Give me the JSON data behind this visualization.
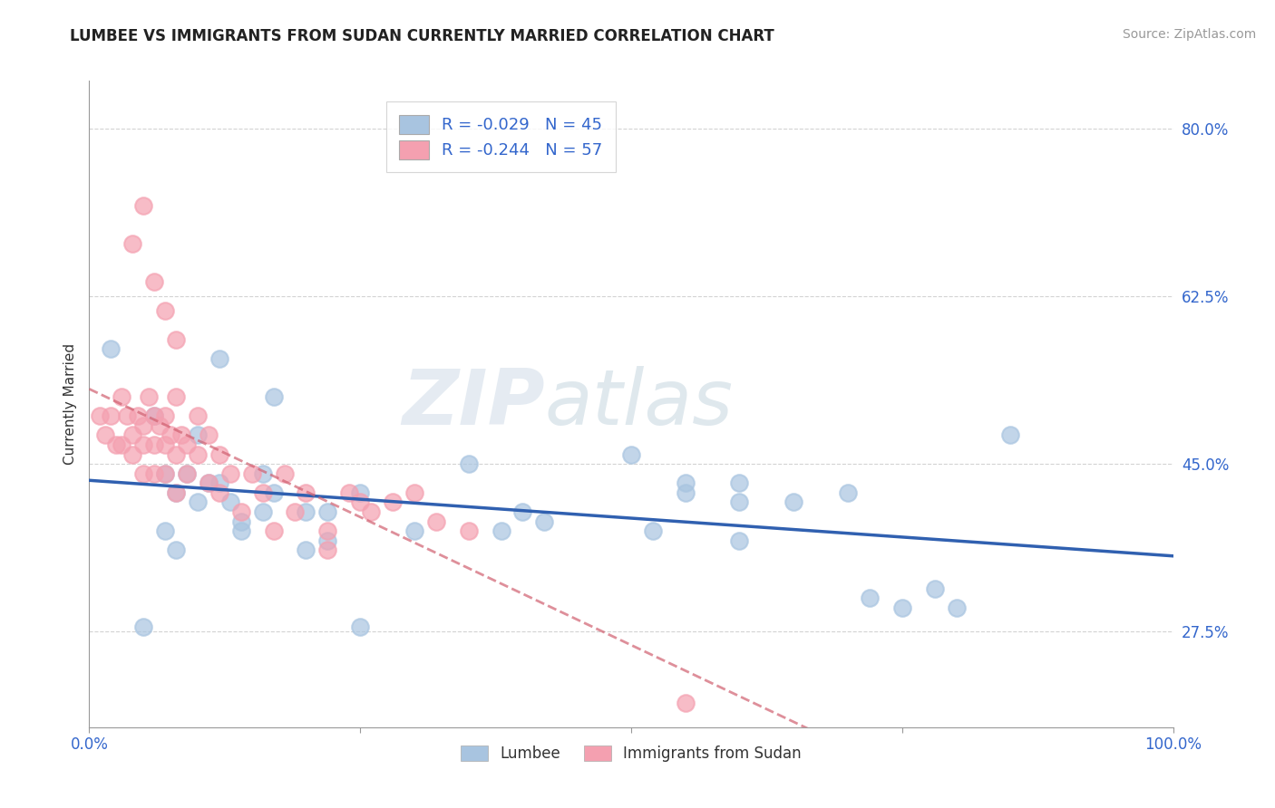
{
  "title": "LUMBEE VS IMMIGRANTS FROM SUDAN CURRENTLY MARRIED CORRELATION CHART",
  "source_text": "Source: ZipAtlas.com",
  "ylabel": "Currently Married",
  "x_min": 0.0,
  "x_max": 1.0,
  "y_min": 0.175,
  "y_max": 0.85,
  "y_ticks": [
    0.275,
    0.45,
    0.625,
    0.8
  ],
  "y_tick_labels": [
    "27.5%",
    "45.0%",
    "62.5%",
    "80.0%"
  ],
  "legend_lumbee_r": "R = -0.029",
  "legend_lumbee_n": "N = 45",
  "legend_sudan_r": "R = -0.244",
  "legend_sudan_n": "N = 57",
  "lumbee_color": "#a8c4e0",
  "sudan_color": "#f4a0b0",
  "lumbee_line_color": "#3060b0",
  "sudan_line_color": "#d06070",
  "watermark_zip": "ZIP",
  "watermark_atlas": "atlas",
  "background_color": "#ffffff",
  "grid_color": "#c8c8c8",
  "lumbee_x": [
    0.02,
    0.09,
    0.06,
    0.07,
    0.08,
    0.1,
    0.11,
    0.12,
    0.13,
    0.14,
    0.05,
    0.16,
    0.17,
    0.08,
    0.2,
    0.07,
    0.22,
    0.12,
    0.25,
    0.1,
    0.3,
    0.14,
    0.35,
    0.16,
    0.17,
    0.2,
    0.22,
    0.25,
    0.5,
    0.52,
    0.55,
    0.42,
    0.38,
    0.4,
    0.55,
    0.6,
    0.7,
    0.6,
    0.75,
    0.8,
    0.72,
    0.85,
    0.78,
    0.65,
    0.6
  ],
  "lumbee_y": [
    0.57,
    0.44,
    0.5,
    0.38,
    0.42,
    0.48,
    0.43,
    0.56,
    0.41,
    0.39,
    0.28,
    0.44,
    0.52,
    0.36,
    0.4,
    0.44,
    0.37,
    0.43,
    0.42,
    0.41,
    0.38,
    0.38,
    0.45,
    0.4,
    0.42,
    0.36,
    0.4,
    0.28,
    0.46,
    0.38,
    0.42,
    0.39,
    0.38,
    0.4,
    0.43,
    0.41,
    0.42,
    0.37,
    0.3,
    0.3,
    0.31,
    0.48,
    0.32,
    0.41,
    0.43
  ],
  "sudan_x": [
    0.01,
    0.015,
    0.02,
    0.025,
    0.03,
    0.03,
    0.035,
    0.04,
    0.04,
    0.045,
    0.05,
    0.05,
    0.05,
    0.055,
    0.06,
    0.06,
    0.06,
    0.065,
    0.07,
    0.07,
    0.07,
    0.075,
    0.08,
    0.08,
    0.08,
    0.085,
    0.09,
    0.09,
    0.1,
    0.1,
    0.11,
    0.11,
    0.12,
    0.12,
    0.13,
    0.14,
    0.15,
    0.16,
    0.17,
    0.18,
    0.19,
    0.2,
    0.22,
    0.24,
    0.26,
    0.28,
    0.3,
    0.32,
    0.35,
    0.25,
    0.04,
    0.05,
    0.06,
    0.07,
    0.08,
    0.55,
    0.22
  ],
  "sudan_y": [
    0.5,
    0.48,
    0.5,
    0.47,
    0.52,
    0.47,
    0.5,
    0.48,
    0.46,
    0.5,
    0.49,
    0.47,
    0.44,
    0.52,
    0.5,
    0.47,
    0.44,
    0.49,
    0.5,
    0.47,
    0.44,
    0.48,
    0.52,
    0.46,
    0.42,
    0.48,
    0.47,
    0.44,
    0.5,
    0.46,
    0.48,
    0.43,
    0.46,
    0.42,
    0.44,
    0.4,
    0.44,
    0.42,
    0.38,
    0.44,
    0.4,
    0.42,
    0.38,
    0.42,
    0.4,
    0.41,
    0.42,
    0.39,
    0.38,
    0.41,
    0.68,
    0.72,
    0.64,
    0.61,
    0.58,
    0.2,
    0.36
  ]
}
